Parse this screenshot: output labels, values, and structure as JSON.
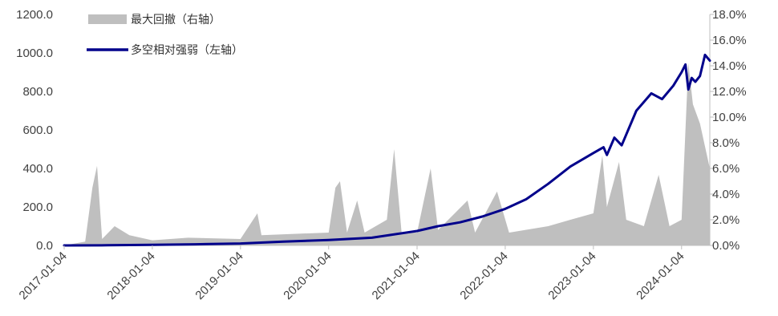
{
  "chart_data": {
    "type": "line",
    "legend": {
      "placement": "top-left",
      "items": [
        {
          "name": "最大回撤（右轴）",
          "kind": "area",
          "color": "#bfbfbf"
        },
        {
          "name": "多空相对强弱（左轴）",
          "kind": "line",
          "color": "#00008b"
        }
      ]
    },
    "y_left": {
      "min": 0,
      "max": 1200,
      "ticks": [
        "0.0",
        "200.0",
        "400.0",
        "600.0",
        "800.0",
        "1000.0",
        "1200.0"
      ]
    },
    "y_right": {
      "min": 0,
      "max": 18,
      "ticks": [
        "0.0%",
        "2.0%",
        "4.0%",
        "6.0%",
        "8.0%",
        "10.0%",
        "12.0%",
        "14.0%",
        "16.0%",
        "18.0%"
      ]
    },
    "x": {
      "ticks": [
        "2017-01-04",
        "2018-01-04",
        "2019-01-04",
        "2020-01-04",
        "2021-01-04",
        "2022-01-04",
        "2023-01-04",
        "2024-01-04"
      ],
      "range": [
        "2017-01-04",
        "2024-04-30"
      ]
    },
    "series": [
      {
        "name": "多空相对强弱（左轴）",
        "axis": "left",
        "color": "#00008b",
        "points": [
          [
            "2017-01-04",
            0
          ],
          [
            "2017-07-01",
            1
          ],
          [
            "2018-01-04",
            3
          ],
          [
            "2018-07-01",
            6
          ],
          [
            "2019-01-04",
            10
          ],
          [
            "2019-07-01",
            20
          ],
          [
            "2020-01-04",
            28
          ],
          [
            "2020-07-01",
            40
          ],
          [
            "2021-01-04",
            75
          ],
          [
            "2021-04-01",
            100
          ],
          [
            "2021-07-01",
            120
          ],
          [
            "2021-10-01",
            150
          ],
          [
            "2022-01-04",
            190
          ],
          [
            "2022-04-01",
            240
          ],
          [
            "2022-07-01",
            320
          ],
          [
            "2022-10-01",
            410
          ],
          [
            "2023-01-04",
            480
          ],
          [
            "2023-02-15",
            510
          ],
          [
            "2023-03-01",
            470
          ],
          [
            "2023-04-01",
            560
          ],
          [
            "2023-05-01",
            520
          ],
          [
            "2023-07-01",
            700
          ],
          [
            "2023-09-01",
            790
          ],
          [
            "2023-10-15",
            760
          ],
          [
            "2023-12-01",
            830
          ],
          [
            "2024-01-04",
            900
          ],
          [
            "2024-01-20",
            940
          ],
          [
            "2024-02-01",
            810
          ],
          [
            "2024-02-15",
            870
          ],
          [
            "2024-03-01",
            850
          ],
          [
            "2024-03-20",
            880
          ],
          [
            "2024-04-10",
            990
          ],
          [
            "2024-04-30",
            960
          ]
        ]
      },
      {
        "name": "最大回撤（右轴）",
        "axis": "right",
        "color": "#bfbfbf",
        "points": [
          [
            "2017-01-04",
            0
          ],
          [
            "2017-04-01",
            0.3
          ],
          [
            "2017-05-01",
            4.5
          ],
          [
            "2017-05-20",
            6.2
          ],
          [
            "2017-06-10",
            0.5
          ],
          [
            "2017-08-01",
            1.5
          ],
          [
            "2017-10-01",
            0.8
          ],
          [
            "2018-01-04",
            0.4
          ],
          [
            "2018-06-01",
            0.6
          ],
          [
            "2019-01-04",
            0.5
          ],
          [
            "2019-03-15",
            2.5
          ],
          [
            "2019-04-01",
            0.8
          ],
          [
            "2020-01-04",
            1.0
          ],
          [
            "2020-02-01",
            4.5
          ],
          [
            "2020-02-20",
            5.0
          ],
          [
            "2020-03-20",
            1.0
          ],
          [
            "2020-05-01",
            3.5
          ],
          [
            "2020-06-01",
            1.0
          ],
          [
            "2020-09-01",
            2.0
          ],
          [
            "2020-10-01",
            7.5
          ],
          [
            "2020-11-01",
            1.0
          ],
          [
            "2021-01-04",
            1.0
          ],
          [
            "2021-03-01",
            6.0
          ],
          [
            "2021-04-01",
            1.2
          ],
          [
            "2021-08-01",
            3.5
          ],
          [
            "2021-09-01",
            1.0
          ],
          [
            "2021-12-01",
            4.2
          ],
          [
            "2022-01-20",
            1.0
          ],
          [
            "2022-07-01",
            1.5
          ],
          [
            "2022-10-01",
            2.0
          ],
          [
            "2023-01-04",
            2.5
          ],
          [
            "2023-02-10",
            7.0
          ],
          [
            "2023-03-01",
            3.0
          ],
          [
            "2023-04-20",
            6.5
          ],
          [
            "2023-05-20",
            2.0
          ],
          [
            "2023-08-01",
            1.5
          ],
          [
            "2023-10-01",
            5.5
          ],
          [
            "2023-11-15",
            1.5
          ],
          [
            "2024-01-04",
            2.0
          ],
          [
            "2024-02-01",
            14.2
          ],
          [
            "2024-02-20",
            11.0
          ],
          [
            "2024-03-20",
            9.5
          ],
          [
            "2024-04-30",
            6.0
          ]
        ]
      }
    ]
  }
}
